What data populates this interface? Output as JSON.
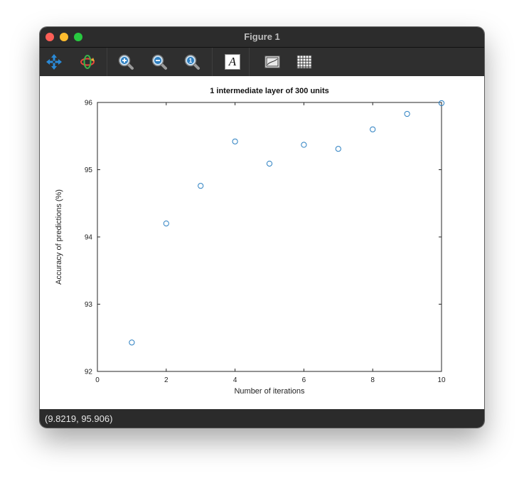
{
  "window": {
    "title": "Figure 1"
  },
  "toolbar": {
    "buttons": [
      {
        "name": "pan-button",
        "icon": "pan-arrows-icon"
      },
      {
        "name": "rotate-button",
        "icon": "rotate-icon"
      },
      {
        "name": "zoom-in-button",
        "icon": "zoom-in-icon"
      },
      {
        "name": "zoom-out-button",
        "icon": "zoom-out-icon"
      },
      {
        "name": "zoom-reset-button",
        "icon": "zoom-original-icon"
      },
      {
        "name": "text-button",
        "icon": "text-A-icon",
        "glyph": "A"
      },
      {
        "name": "axes-button",
        "icon": "axes-icon"
      },
      {
        "name": "grid-button",
        "icon": "grid-icon"
      }
    ]
  },
  "chart_data": {
    "type": "scatter",
    "title": "1 intermediate layer of 300 units",
    "xlabel": "Number of iterations",
    "ylabel": "Accuracy of predictions (%)",
    "xlim": [
      0,
      10
    ],
    "ylim": [
      92,
      96
    ],
    "xticks": [
      0,
      2,
      4,
      6,
      8,
      10
    ],
    "yticks": [
      92,
      93,
      94,
      95,
      96
    ],
    "grid": false,
    "marker": "circle",
    "marker_color": "#2a7fc1",
    "series": [
      {
        "x": [
          1,
          2,
          3,
          4,
          5,
          6,
          7,
          8,
          9,
          10
        ],
        "y": [
          92.43,
          94.2,
          94.76,
          95.42,
          95.09,
          95.37,
          95.31,
          95.6,
          95.83,
          95.99
        ]
      }
    ]
  },
  "status": {
    "coordinates": "(9.8219, 95.906)"
  }
}
